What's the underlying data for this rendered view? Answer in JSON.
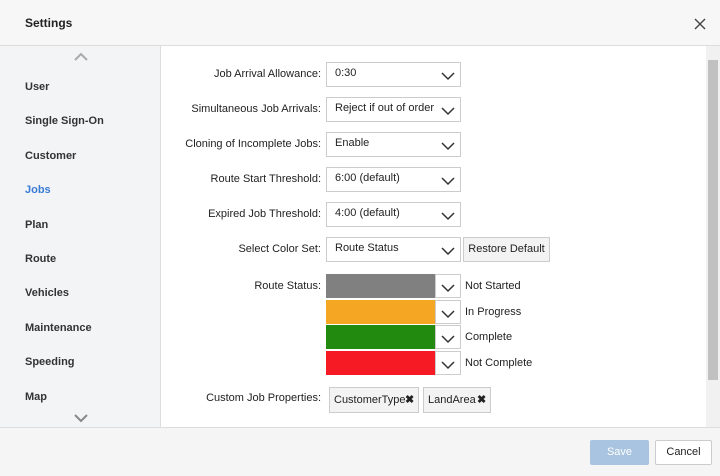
{
  "header": {
    "title": "Settings"
  },
  "sidebar": {
    "items": [
      "User",
      "Single Sign-On",
      "Customer",
      "Jobs",
      "Plan",
      "Route",
      "Vehicles",
      "Maintenance",
      "Speeding",
      "Map"
    ]
  },
  "form": {
    "rows": [
      {
        "label": "Job Arrival Allowance:",
        "value": "0:30"
      },
      {
        "label": "Simultaneous Job Arrivals:",
        "value": "Reject if out of order"
      },
      {
        "label": "Cloning of Incomplete Jobs:",
        "value": "Enable"
      },
      {
        "label": "Route Start Threshold:",
        "value": "6:00 (default)"
      },
      {
        "label": "Expired Job Threshold:",
        "value": "4:00 (default)"
      },
      {
        "label": "Select Color Set:",
        "value": "Route Status",
        "button": "Restore Default"
      }
    ],
    "route_status": {
      "label": "Route Status:",
      "entries": [
        {
          "name": "Not Started",
          "color": "#808080"
        },
        {
          "name": "In Progress",
          "color": "#f5a623"
        },
        {
          "name": "Complete",
          "color": "#228b0f"
        },
        {
          "name": "Not Complete",
          "color": "#f51a24"
        }
      ]
    },
    "custom_properties": {
      "label": "Custom Job Properties:",
      "chips": [
        "CustomerType",
        "LandArea"
      ]
    }
  },
  "footer": {
    "save": "Save",
    "cancel": "Cancel"
  }
}
